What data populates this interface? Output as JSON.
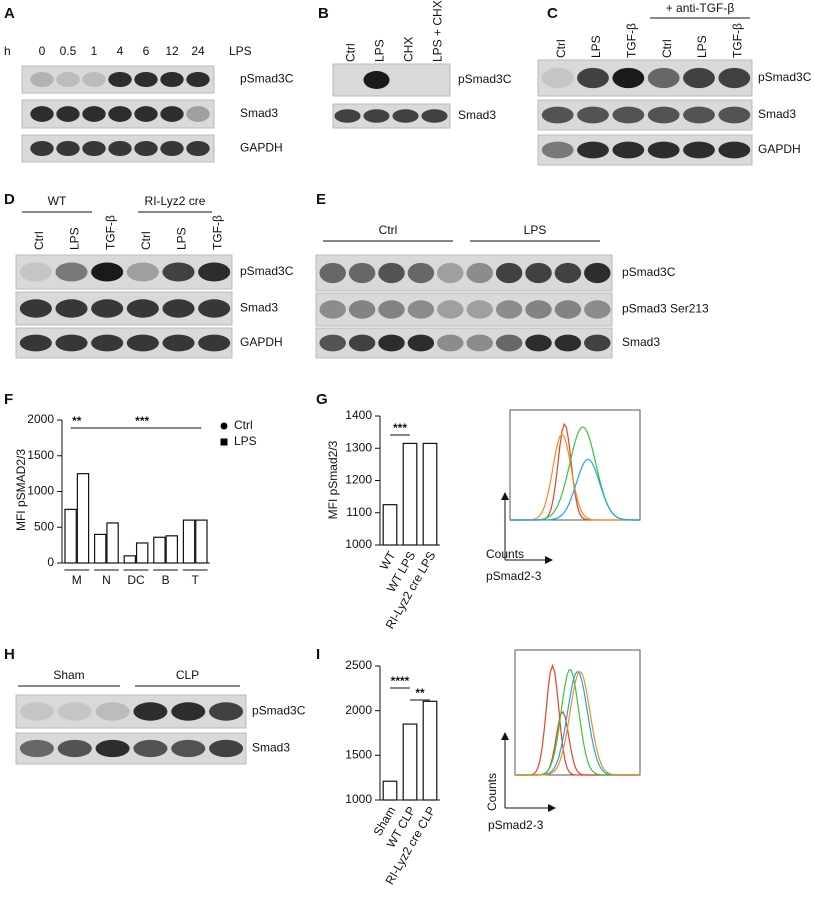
{
  "blot_a": {
    "letter": "A",
    "row_label": "h",
    "lanes": [
      "0",
      "0.5",
      "1",
      "4",
      "6",
      "12",
      "24"
    ],
    "treatment": "LPS",
    "bands": [
      "pSmad3C",
      "Smad3",
      "GAPDH"
    ]
  },
  "blot_b": {
    "letter": "B",
    "lanes": [
      "Ctrl",
      "LPS",
      "CHX",
      "LPS + CHX"
    ],
    "bands": [
      "pSmad3C",
      "Smad3"
    ]
  },
  "blot_c": {
    "letter": "C",
    "header": "+ anti-TGF-β",
    "lanes": [
      "Ctrl",
      "LPS",
      "TGF-β",
      "Ctrl",
      "LPS",
      "TGF-β"
    ],
    "bands": [
      "pSmad3C",
      "Smad3",
      "GAPDH"
    ]
  },
  "blot_d": {
    "letter": "D",
    "groups": [
      "WT",
      "RI-Lyz2 cre"
    ],
    "lanes": [
      "Ctrl",
      "LPS",
      "TGF-β",
      "Ctrl",
      "LPS",
      "TGF-β"
    ],
    "bands": [
      "pSmad3C",
      "Smad3",
      "GAPDH"
    ]
  },
  "blot_e": {
    "letter": "E",
    "groups": [
      "Ctrl",
      "LPS"
    ],
    "bands": [
      "pSmad3C",
      "pSmad3 Ser213",
      "Smad3"
    ]
  },
  "blot_h": {
    "letter": "H",
    "groups": [
      "Sham",
      "CLP"
    ],
    "bands": [
      "pSmad3C",
      "Smad3"
    ]
  },
  "chart_data": [
    {
      "type": "bar",
      "panel_letter": "F",
      "y_label": "MFI pSMAD2/3",
      "categories": [
        "M",
        "N",
        "DC",
        "B",
        "T"
      ],
      "series": [
        {
          "name": "Ctrl",
          "color": "#000000",
          "values": [
            750,
            400,
            100,
            360,
            600
          ]
        },
        {
          "name": "LPS",
          "color": "#000000",
          "values": [
            1250,
            560,
            280,
            380,
            600
          ]
        }
      ],
      "ylim": [
        0,
        2000
      ],
      "yticks": [
        0,
        500,
        1000,
        1500,
        2000
      ],
      "annotations": [
        "**",
        "***"
      ]
    },
    {
      "type": "bar",
      "panel_letter": "G",
      "y_label": "MFI pSmad2/3",
      "categories": [
        "WT",
        "WT LPS",
        "RI-Lyz2 cre LPS"
      ],
      "values": [
        1125,
        1315,
        1315
      ],
      "ylim": [
        1000,
        1400
      ],
      "yticks": [
        1000,
        1100,
        1200,
        1300,
        1400
      ],
      "annotations": [
        "***"
      ]
    },
    {
      "type": "bar",
      "panel_letter": "I",
      "categories": [
        "Sham",
        "WT CLP",
        "RI-Lyz2 cre CLP"
      ],
      "values": [
        1210,
        1850,
        2105
      ],
      "ylim": [
        1000,
        2500
      ],
      "yticks": [
        1000,
        1500,
        2000,
        2500
      ],
      "annotations": [
        "****",
        "**"
      ]
    }
  ],
  "flow_g": {
    "y_label": "Counts",
    "x_label": "pSmad2-3"
  },
  "flow_i": {
    "y_label": "Counts",
    "x_label": "pSmad2-3"
  }
}
